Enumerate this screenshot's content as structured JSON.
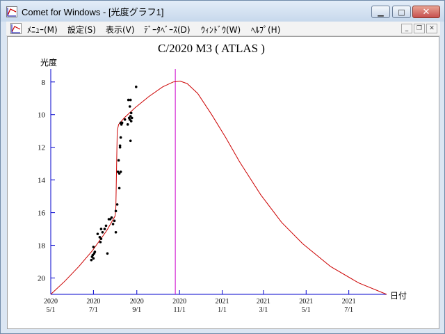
{
  "window": {
    "title": "Comet for Windows - [光度グラフ1]",
    "controls": {
      "minimize": "minimize-icon",
      "maximize": "maximize-icon",
      "close": "close-icon"
    }
  },
  "menu": {
    "items": [
      {
        "label": "ﾒﾆｭｰ(M)"
      },
      {
        "label": "設定(S)"
      },
      {
        "label": "表示(V)"
      },
      {
        "label": "ﾃﾞｰﾀﾍﾞｰｽ(D)"
      },
      {
        "label": "ｳｨﾝﾄﾞｳ(W)"
      },
      {
        "label": "ﾍﾙﾌﾟ(H)"
      }
    ]
  },
  "chart_data": {
    "type": "scatter",
    "title": "C/2020 M3 ( ATLAS )",
    "ylabel": "光度",
    "xlabel": "日付",
    "ylim": [
      21,
      7.2
    ],
    "y_ticks": [
      8,
      10,
      12,
      14,
      16,
      18,
      20
    ],
    "x_ticks": [
      {
        "year": "2020",
        "date": "5/1"
      },
      {
        "year": "2020",
        "date": "7/1"
      },
      {
        "year": "2020",
        "date": "9/1"
      },
      {
        "year": "2020",
        "date": "11/1"
      },
      {
        "year": "2021",
        "date": "1/1"
      },
      {
        "year": "2021",
        "date": "3/1"
      },
      {
        "year": "2021",
        "date": "5/1"
      },
      {
        "year": "2021",
        "date": "7/1"
      }
    ],
    "x_tick_days": [
      0,
      61,
      123,
      184,
      245,
      304,
      365,
      426
    ],
    "x_end_day": 480,
    "current_date_day": 178,
    "observations": [
      {
        "x": 58,
        "y": 18.9
      },
      {
        "x": 59,
        "y": 18.7
      },
      {
        "x": 60,
        "y": 18.6
      },
      {
        "x": 61,
        "y": 18.8
      },
      {
        "x": 62,
        "y": 18.5
      },
      {
        "x": 61,
        "y": 18.1
      },
      {
        "x": 63,
        "y": 18.4
      },
      {
        "x": 67,
        "y": 17.3
      },
      {
        "x": 70,
        "y": 17.5
      },
      {
        "x": 71,
        "y": 17.8
      },
      {
        "x": 72,
        "y": 17.6
      },
      {
        "x": 74,
        "y": 17.2
      },
      {
        "x": 72,
        "y": 17.0
      },
      {
        "x": 77,
        "y": 17.0
      },
      {
        "x": 79,
        "y": 16.8
      },
      {
        "x": 81,
        "y": 18.5
      },
      {
        "x": 83,
        "y": 16.4
      },
      {
        "x": 85,
        "y": 16.4
      },
      {
        "x": 87,
        "y": 16.3
      },
      {
        "x": 89,
        "y": 16.7
      },
      {
        "x": 91,
        "y": 16.5
      },
      {
        "x": 93,
        "y": 15.9
      },
      {
        "x": 93,
        "y": 17.2
      },
      {
        "x": 95,
        "y": 15.5
      },
      {
        "x": 96,
        "y": 13.5
      },
      {
        "x": 97,
        "y": 12.8
      },
      {
        "x": 98,
        "y": 14.5
      },
      {
        "x": 98,
        "y": 13.6
      },
      {
        "x": 99,
        "y": 12.0
      },
      {
        "x": 99,
        "y": 11.9
      },
      {
        "x": 100,
        "y": 11.4
      },
      {
        "x": 100,
        "y": 13.5
      },
      {
        "x": 100,
        "y": 10.5
      },
      {
        "x": 101,
        "y": 10.6
      },
      {
        "x": 102,
        "y": 10.5
      },
      {
        "x": 106,
        "y": 10.3
      },
      {
        "x": 110,
        "y": 10.6
      },
      {
        "x": 111,
        "y": 9.1
      },
      {
        "x": 112,
        "y": 10.2
      },
      {
        "x": 113,
        "y": 10.3
      },
      {
        "x": 113,
        "y": 9.5
      },
      {
        "x": 114,
        "y": 9.1
      },
      {
        "x": 114,
        "y": 10.1
      },
      {
        "x": 115,
        "y": 10.4
      },
      {
        "x": 115,
        "y": 9.9
      },
      {
        "x": 116,
        "y": 10.2
      },
      {
        "x": 114,
        "y": 11.6
      },
      {
        "x": 122,
        "y": 8.3
      }
    ],
    "predicted_curve": [
      {
        "x": 0,
        "y": 21.0
      },
      {
        "x": 20,
        "y": 20.2
      },
      {
        "x": 40,
        "y": 19.3
      },
      {
        "x": 60,
        "y": 18.3
      },
      {
        "x": 80,
        "y": 17.1
      },
      {
        "x": 92,
        "y": 16.2
      },
      {
        "x": 93,
        "y": 15.7
      },
      {
        "x": 95,
        "y": 11.0
      },
      {
        "x": 97,
        "y": 10.6
      },
      {
        "x": 105,
        "y": 10.2
      },
      {
        "x": 120,
        "y": 9.6
      },
      {
        "x": 140,
        "y": 8.9
      },
      {
        "x": 160,
        "y": 8.3
      },
      {
        "x": 175,
        "y": 8.0
      },
      {
        "x": 185,
        "y": 7.95
      },
      {
        "x": 195,
        "y": 8.1
      },
      {
        "x": 210,
        "y": 8.7
      },
      {
        "x": 230,
        "y": 10.0
      },
      {
        "x": 250,
        "y": 11.4
      },
      {
        "x": 270,
        "y": 12.9
      },
      {
        "x": 300,
        "y": 14.9
      },
      {
        "x": 330,
        "y": 16.6
      },
      {
        "x": 360,
        "y": 17.9
      },
      {
        "x": 400,
        "y": 19.3
      },
      {
        "x": 440,
        "y": 20.3
      },
      {
        "x": 480,
        "y": 21.0
      }
    ],
    "colors": {
      "axis": "#0000cc",
      "curve": "#cc0000",
      "current_date_line": "#cc00cc",
      "points": "#000000"
    },
    "grid": false
  }
}
